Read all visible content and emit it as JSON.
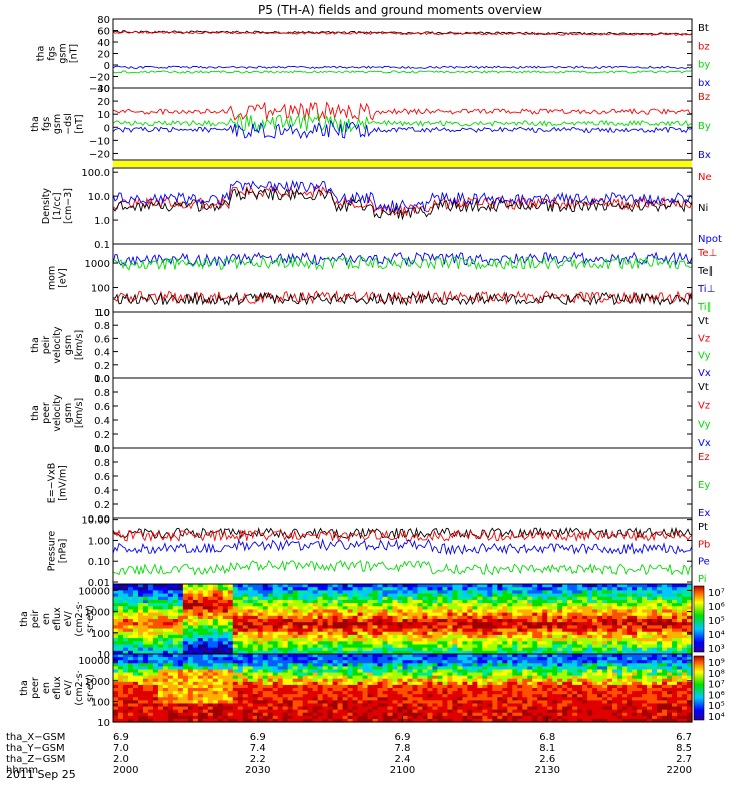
{
  "title": "P5 (TH-A) fields and ground moments overview",
  "date_label": "2011 Sep 25",
  "colors": {
    "black": "#000000",
    "red": "#ff0000",
    "green": "#00dd00",
    "blue": "#0000ff",
    "yellow": "#ffff00"
  },
  "chart_data": [
    {
      "type": "line",
      "ylabel": [
        "tha",
        "fgs",
        "gsm",
        "[nT]"
      ],
      "ylim": [
        -40,
        80
      ],
      "ticks": [
        {
          "v": 80,
          "l": "80"
        },
        {
          "v": 60,
          "l": "60"
        },
        {
          "v": 40,
          "l": "40"
        },
        {
          "v": 20,
          "l": "20"
        },
        {
          "v": 0,
          "l": "0"
        },
        {
          "v": -20,
          "l": "−20"
        },
        {
          "v": -40,
          "l": "−40"
        }
      ],
      "series": [
        {
          "name": "Bt",
          "color": "black",
          "base": 58
        },
        {
          "name": "bz",
          "color": "red",
          "base": 57
        },
        {
          "name": "by",
          "color": "green",
          "base": -12
        },
        {
          "name": "bx",
          "color": "blue",
          "base": -4
        }
      ]
    },
    {
      "type": "line",
      "ylabel": [
        "tha",
        "fgs",
        "gsm",
        "−dsl",
        "[nT]"
      ],
      "ylim": [
        -25,
        30
      ],
      "ticks": [
        {
          "v": 30,
          "l": "30"
        },
        {
          "v": 20,
          "l": "20"
        },
        {
          "v": 10,
          "l": "10"
        },
        {
          "v": 0,
          "l": "0"
        },
        {
          "v": -10,
          "l": "−10"
        },
        {
          "v": -20,
          "l": "−20"
        }
      ],
      "series": [
        {
          "name": "Bz",
          "color": "red",
          "base": 12
        },
        {
          "name": "By",
          "color": "green",
          "base": 3
        },
        {
          "name": "Bx",
          "color": "blue",
          "base": -2
        }
      ]
    },
    {
      "type": "line",
      "log": true,
      "ylabel": [
        "Density",
        "[1/cc]",
        "[cm−3]"
      ],
      "ylim": [
        0.1,
        150
      ],
      "ticks": [
        {
          "v": 100,
          "l": "100.0"
        },
        {
          "v": 10,
          "l": "10.0"
        },
        {
          "v": 1,
          "l": "1.0"
        },
        {
          "v": 0.1,
          "l": "0.1"
        }
      ],
      "series": [
        {
          "name": "Ne",
          "color": "red",
          "base": 5
        },
        {
          "name": "Ni",
          "color": "black",
          "base": 4
        },
        {
          "name": "Npot",
          "color": "blue",
          "base": 8
        }
      ]
    },
    {
      "type": "line",
      "log": true,
      "ylabel": [
        "mom",
        "[eV]"
      ],
      "ylim": [
        10,
        6000
      ],
      "ticks": [
        {
          "v": 1000,
          "l": "1000"
        },
        {
          "v": 100,
          "l": "100"
        },
        {
          "v": 10,
          "l": "10"
        }
      ],
      "series": [
        {
          "name": "Te⊥",
          "color": "red",
          "base": 40
        },
        {
          "name": "Te∥",
          "color": "black",
          "base": 35
        },
        {
          "name": "Ti⊥",
          "color": "blue",
          "base": 1500
        },
        {
          "name": "Ti∥",
          "color": "green",
          "base": 1000
        }
      ]
    },
    {
      "type": "line",
      "ylabel": [
        "tha",
        "peir",
        "velocity",
        "gsm",
        "[km/s]"
      ],
      "ylim": [
        0,
        1
      ],
      "ticks": [
        {
          "v": 1,
          "l": "1.0"
        },
        {
          "v": 0.8,
          "l": "0.8"
        },
        {
          "v": 0.6,
          "l": "0.6"
        },
        {
          "v": 0.4,
          "l": "0.4"
        },
        {
          "v": 0.2,
          "l": "0.2"
        },
        {
          "v": 0,
          "l": "0.0"
        }
      ],
      "series": [
        {
          "name": "Vt",
          "color": "black"
        },
        {
          "name": "Vz",
          "color": "red"
        },
        {
          "name": "Vy",
          "color": "green"
        },
        {
          "name": "Vx",
          "color": "blue"
        }
      ]
    },
    {
      "type": "line",
      "ylabel": [
        "tha",
        "peer",
        "velocity",
        "gsm",
        "[km/s]"
      ],
      "ylim": [
        0,
        1
      ],
      "ticks": [
        {
          "v": 1,
          "l": "1.0"
        },
        {
          "v": 0.8,
          "l": "0.8"
        },
        {
          "v": 0.6,
          "l": "0.6"
        },
        {
          "v": 0.4,
          "l": "0.4"
        },
        {
          "v": 0.2,
          "l": "0.2"
        },
        {
          "v": 0,
          "l": "0.0"
        }
      ],
      "series": [
        {
          "name": "Vt",
          "color": "black"
        },
        {
          "name": "Vz",
          "color": "red"
        },
        {
          "name": "Vy",
          "color": "green"
        },
        {
          "name": "Vx",
          "color": "blue"
        }
      ]
    },
    {
      "type": "line",
      "ylabel": [
        "E=−VxB",
        "[mV/m]"
      ],
      "ylim": [
        0,
        1
      ],
      "ticks": [
        {
          "v": 1,
          "l": "1.0"
        },
        {
          "v": 0.8,
          "l": "0.8"
        },
        {
          "v": 0.6,
          "l": "0.6"
        },
        {
          "v": 0.4,
          "l": "0.4"
        },
        {
          "v": 0.2,
          "l": "0.2"
        },
        {
          "v": 0,
          "l": "0.00"
        }
      ],
      "series": [
        {
          "name": "Ez",
          "color": "red"
        },
        {
          "name": "Ey",
          "color": "green"
        },
        {
          "name": "Ex",
          "color": "blue"
        }
      ]
    },
    {
      "type": "line",
      "log": true,
      "ylabel": [
        "Pressure",
        "[nPa]"
      ],
      "ylim": [
        0.008,
        12
      ],
      "ticks": [
        {
          "v": 10,
          "l": "10.00"
        },
        {
          "v": 1,
          "l": "1.00"
        },
        {
          "v": 0.1,
          "l": "0.10"
        },
        {
          "v": 0.01,
          "l": "0.01"
        }
      ],
      "series": [
        {
          "name": "Pt",
          "color": "black",
          "base": 2.2
        },
        {
          "name": "Pb",
          "color": "red",
          "base": 1.7
        },
        {
          "name": "Pe",
          "color": "blue",
          "base": 0.4
        },
        {
          "name": "Pi",
          "color": "green",
          "base": 0.04
        }
      ]
    },
    {
      "type": "heatmap",
      "log": true,
      "ylabel": [
        "tha",
        "peir",
        "en",
        "eflux",
        "eV/",
        "(cm2·s·",
        "sr·eV)"
      ],
      "ylim": [
        10,
        20000
      ],
      "ticks": [
        {
          "v": 10000,
          "l": "10000"
        },
        {
          "v": 1000,
          "l": "1000"
        },
        {
          "v": 100,
          "l": "100"
        },
        {
          "v": 10,
          "l": "10"
        }
      ],
      "colorbar": {
        "ticks": [
          "10⁷",
          "10⁶",
          "10⁵",
          "10⁴",
          "10³"
        ]
      }
    },
    {
      "type": "heatmap",
      "log": true,
      "ylabel": [
        "tha",
        "peer",
        "en",
        "eflux",
        "eV/",
        "(cm2·s·",
        "sr·eV)"
      ],
      "ylim": [
        10,
        20000
      ],
      "ticks": [
        {
          "v": 10000,
          "l": "10000"
        },
        {
          "v": 1000,
          "l": "1000"
        },
        {
          "v": 100,
          "l": "100"
        },
        {
          "v": 10,
          "l": "10"
        }
      ],
      "colorbar": {
        "ticks": [
          "10⁹",
          "10⁸",
          "10⁷",
          "10⁶",
          "10⁵",
          "10⁴"
        ]
      }
    }
  ],
  "x_axis": {
    "rows": [
      {
        "label": "tha_X−GSM",
        "values": [
          "6.9",
          "6.9",
          "6.9",
          "6.8",
          "6.7"
        ]
      },
      {
        "label": "tha_Y−GSM",
        "values": [
          "7.0",
          "7.4",
          "7.8",
          "8.1",
          "8.5"
        ]
      },
      {
        "label": "tha_Z−GSM",
        "values": [
          "2.0",
          "2.2",
          "2.4",
          "2.6",
          "2.7"
        ]
      },
      {
        "label": "hhmm",
        "values": [
          "2000",
          "2030",
          "2100",
          "2130",
          "2200"
        ]
      }
    ]
  }
}
